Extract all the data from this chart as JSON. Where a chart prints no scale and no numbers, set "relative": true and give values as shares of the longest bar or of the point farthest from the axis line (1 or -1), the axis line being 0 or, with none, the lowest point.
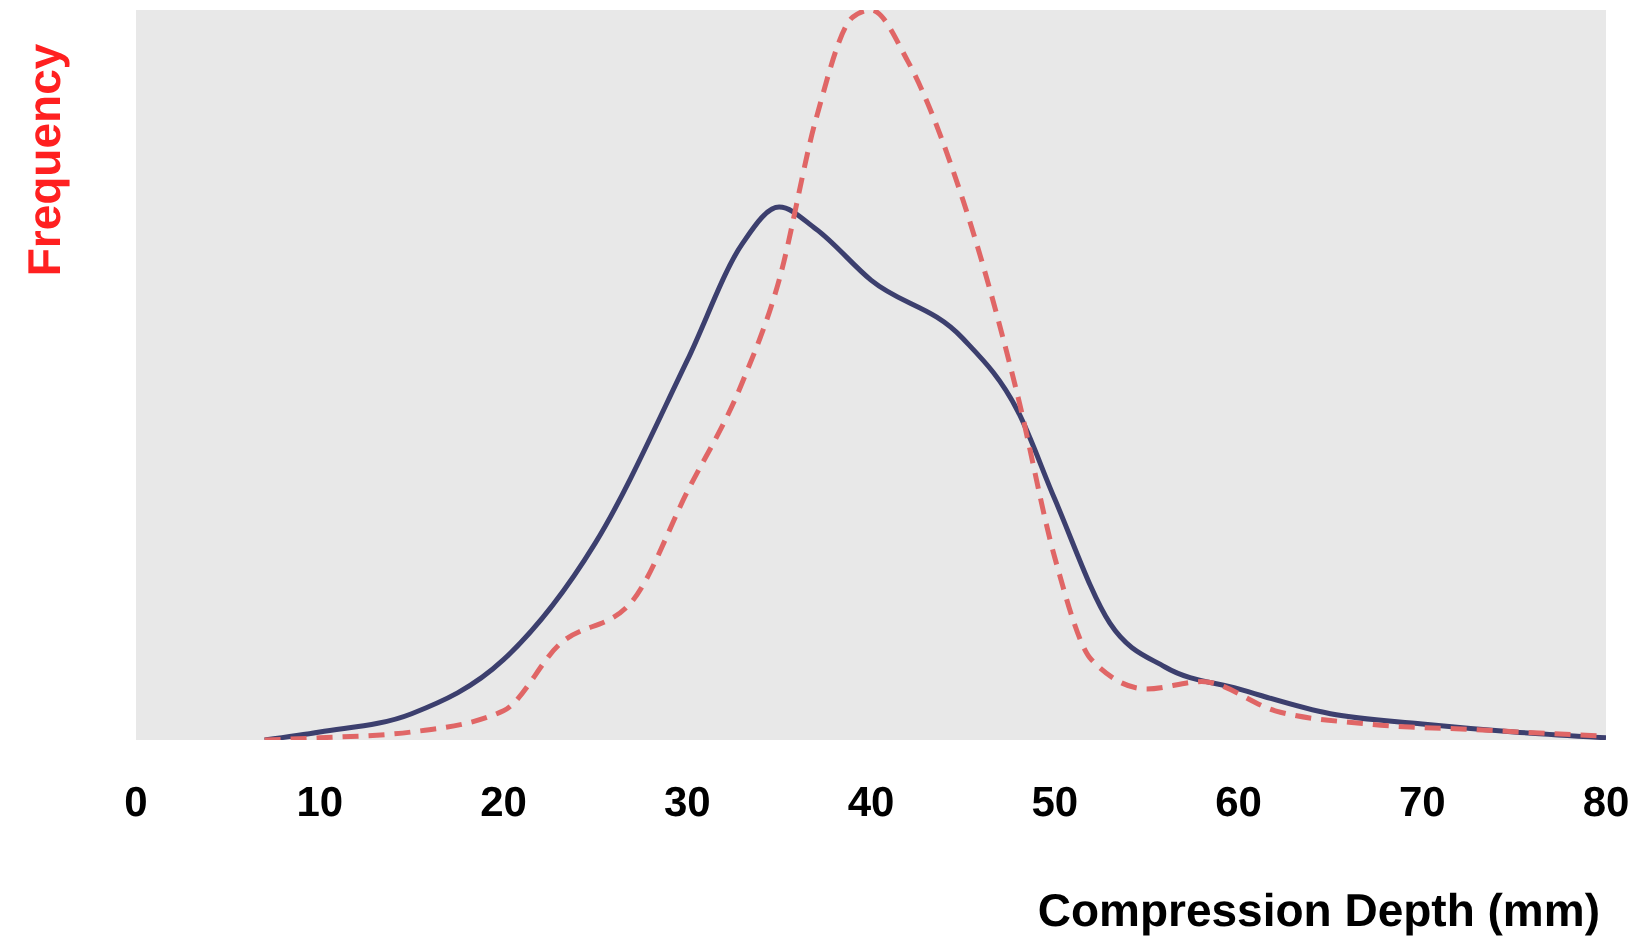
{
  "chart_data": {
    "type": "line",
    "relative": true,
    "ylabel": "Frequency",
    "xlabel": "Compression Depth (mm)",
    "xlim": [
      0,
      80
    ],
    "xticks": [
      0,
      10,
      20,
      30,
      40,
      50,
      60,
      70,
      80
    ],
    "grid": false,
    "legend": false,
    "marker": "none",
    "series": [
      {
        "color": "#3c3f6e",
        "line_style": "solid",
        "x": [
          7,
          10,
          15,
          20,
          25,
          30,
          33,
          35,
          37,
          40,
          45,
          48,
          50,
          53,
          56,
          60,
          65,
          70,
          75,
          80
        ],
        "values": [
          0,
          0.011,
          0.036,
          0.11,
          0.27,
          0.52,
          0.68,
          0.73,
          0.7,
          0.63,
          0.55,
          0.45,
          0.33,
          0.16,
          0.1,
          0.07,
          0.036,
          0.022,
          0.011,
          0.003
        ]
      },
      {
        "color": "#e06666",
        "line_style": "dashed",
        "x": [
          7,
          10,
          15,
          20,
          23,
          27,
          30,
          33,
          35,
          37,
          39,
          40,
          42,
          45,
          48,
          50,
          52,
          55,
          58,
          62,
          67,
          73,
          80
        ],
        "values": [
          0,
          0.003,
          0.011,
          0.04,
          0.13,
          0.19,
          0.34,
          0.49,
          0.63,
          0.85,
          0.99,
          1,
          0.93,
          0.74,
          0.47,
          0.25,
          0.11,
          0.07,
          0.08,
          0.04,
          0.022,
          0.014,
          0.005
        ]
      }
    ]
  }
}
